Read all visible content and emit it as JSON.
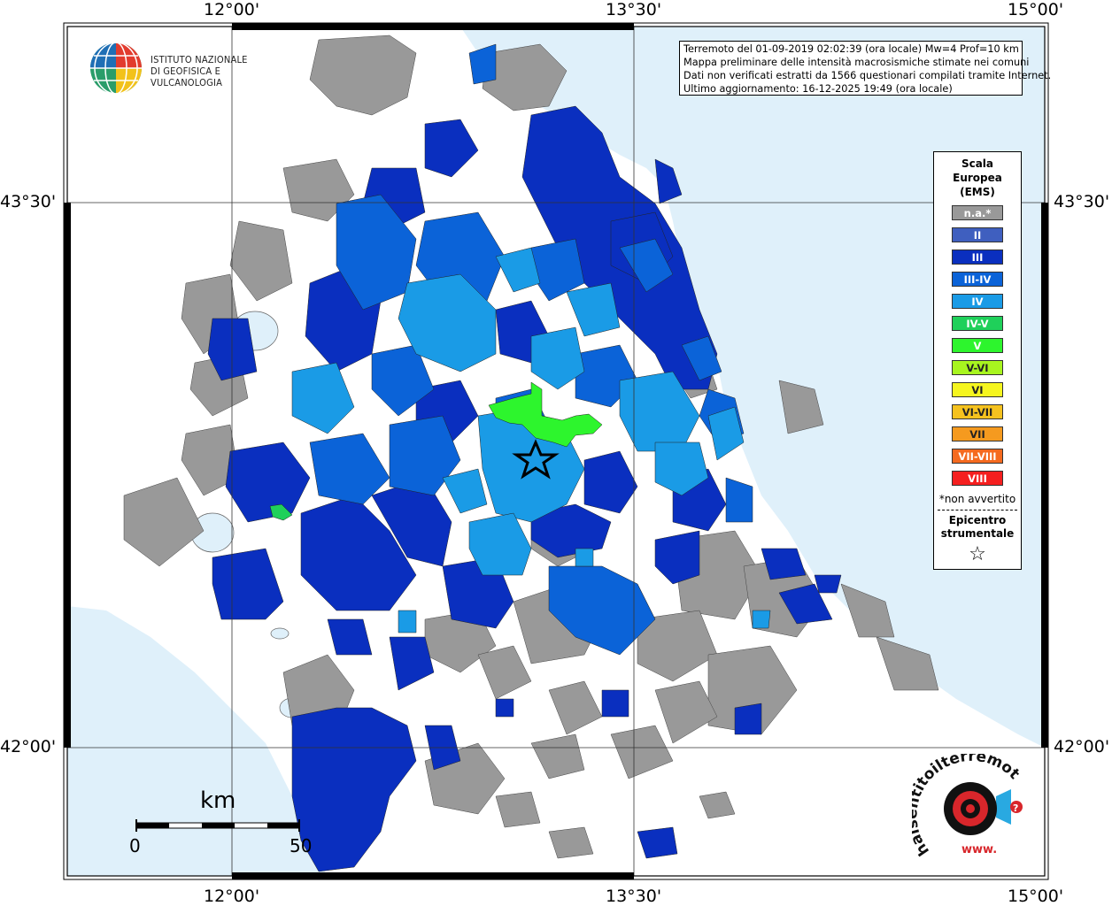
{
  "coords": {
    "top": [
      "12°00'",
      "13°30'",
      "15°00'"
    ],
    "bottom": [
      "12°00'",
      "13°30'",
      "15°00'"
    ],
    "left": [
      "43°30'",
      "42°00'"
    ],
    "right": [
      "43°30'",
      "42°00'"
    ]
  },
  "institute": {
    "line1": "ISTITUTO NAZIONALE",
    "line2": "DI GEOFISICA E VULCANOLOGIA"
  },
  "info": {
    "line1": "Terremoto del 01-09-2019 02:02:39 (ora locale) Mw=4 Prof=10 km",
    "line2": "Mappa preliminare delle intensità macrosismiche stimate nei comuni",
    "line3": "Dati non verificati estratti da 1566 questionari compilati tramite Internet.",
    "line4": "Ultimo aggiornamento: 16-12-2025 19:49 (ora locale)"
  },
  "legend": {
    "title1": "Scala",
    "title2": "Europea",
    "title3": "(EMS)",
    "items": [
      {
        "label": "n.a.*",
        "color": "#999999"
      },
      {
        "label": "II",
        "color": "#3f5fbf"
      },
      {
        "label": "III",
        "color": "#0a2fbf"
      },
      {
        "label": "III-IV",
        "color": "#0b63d8"
      },
      {
        "label": "IV",
        "color": "#1a9be6"
      },
      {
        "label": "IV-V",
        "color": "#1fd05a"
      },
      {
        "label": "V",
        "color": "#2df52d"
      },
      {
        "label": "V-VI",
        "color": "#a8f51f"
      },
      {
        "label": "VI",
        "color": "#f5f51f"
      },
      {
        "label": "VI-VII",
        "color": "#f5c21f"
      },
      {
        "label": "VII",
        "color": "#f59a1f"
      },
      {
        "label": "VII-VIII",
        "color": "#f56a1f"
      },
      {
        "label": "VIII",
        "color": "#f51f1f"
      }
    ],
    "note": "*non avvertito",
    "epi1": "Epicentro",
    "epi2": "strumentale",
    "star": "☆"
  },
  "scale": {
    "unit": "km",
    "min": "0",
    "max": "50"
  },
  "colors": {
    "sea": "#dff0fa",
    "na": "#999999",
    "ii": "#3f5fbf",
    "iii": "#0a2fbf",
    "iii_iv": "#0b63d8",
    "iv": "#1a9be6",
    "v": "#2df52d"
  },
  "hai_logo": {
    "text": "haisentitoilterremoto.it",
    "prefix": "www."
  }
}
